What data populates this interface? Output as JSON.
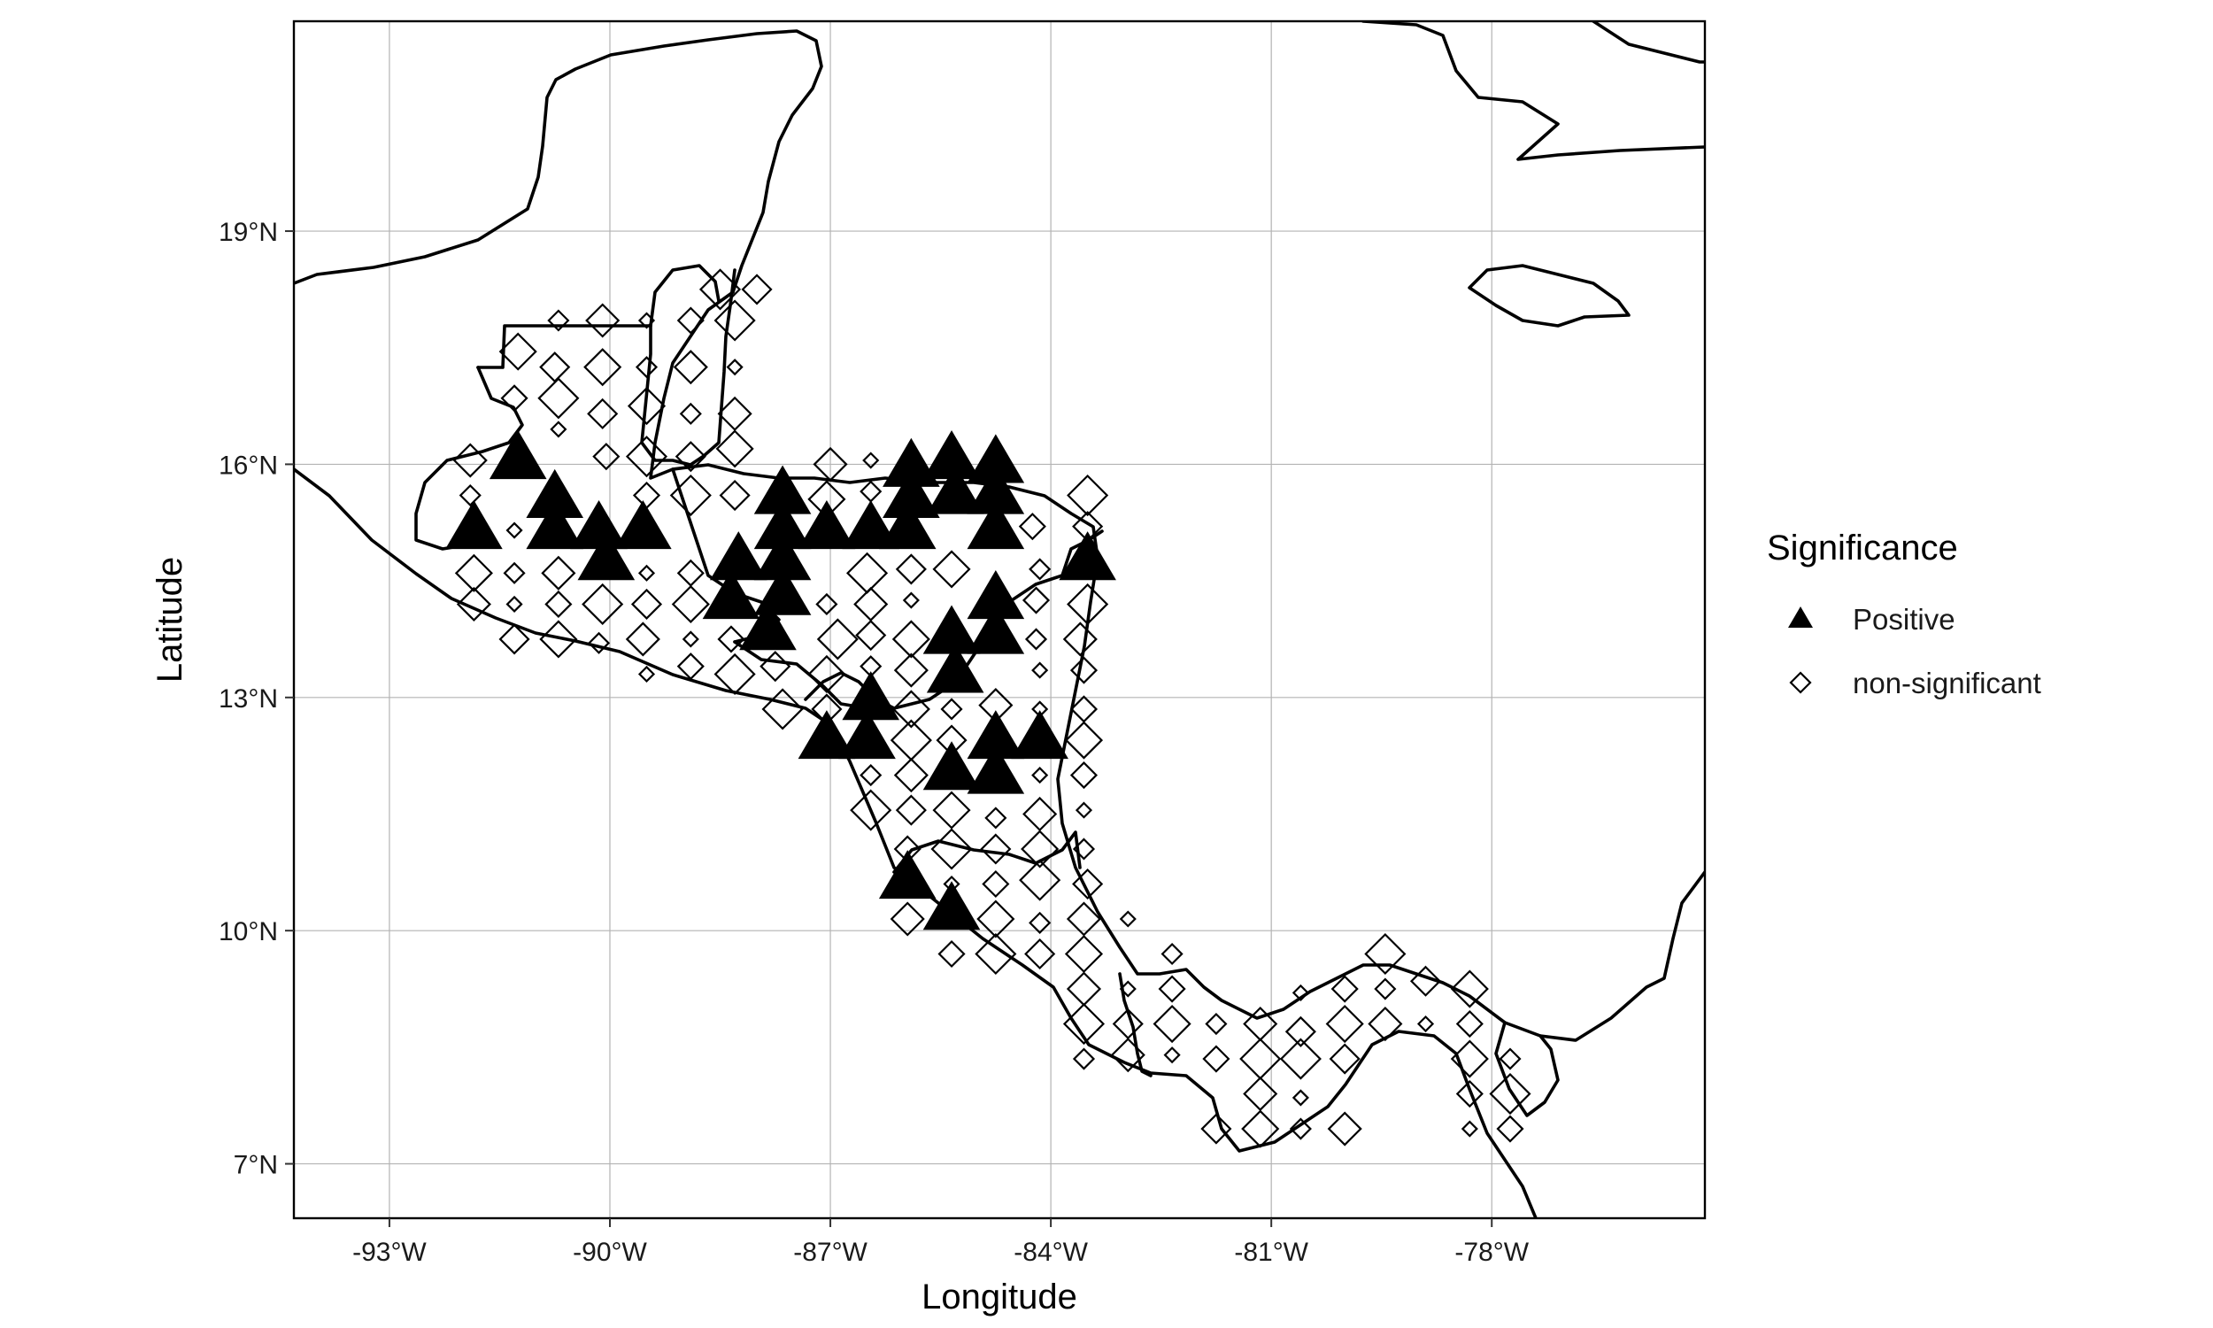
{
  "chart_data": {
    "type": "scatter",
    "title": "",
    "xlabel": "Longitude",
    "ylabel": "Latitude",
    "xlim": [
      -94.3,
      -75.1
    ],
    "ylim": [
      6.3,
      21.7
    ],
    "xticks": [
      -93,
      -90,
      -87,
      -84,
      -81,
      -78
    ],
    "xtick_labels": [
      "-93°W",
      "-90°W",
      "-87°W",
      "-84°W",
      "-81°W",
      "-78°W"
    ],
    "yticks": [
      7,
      10,
      13,
      16,
      19
    ],
    "ytick_labels": [
      "7°N",
      "10°N",
      "13°N",
      "16°N",
      "19°N"
    ],
    "grid": true,
    "legend": {
      "title": "Significance",
      "placement": "right",
      "entries": [
        {
          "label": "Positive",
          "shape": "triangle"
        },
        {
          "label": "non-significant",
          "shape": "diamond"
        }
      ]
    },
    "series": [
      {
        "name": "Positive",
        "shape": "triangle",
        "color": "#000000",
        "points": [
          [
            -91.25,
            16.05
          ],
          [
            -90.75,
            15.55
          ],
          [
            -91.85,
            15.15
          ],
          [
            -90.75,
            15.15
          ],
          [
            -90.15,
            15.15
          ],
          [
            -89.55,
            15.15
          ],
          [
            -90.05,
            14.75
          ],
          [
            -88.25,
            14.75
          ],
          [
            -88.35,
            14.25
          ],
          [
            -87.65,
            15.6
          ],
          [
            -87.65,
            15.15
          ],
          [
            -87.05,
            15.15
          ],
          [
            -86.45,
            15.15
          ],
          [
            -85.95,
            15.15
          ],
          [
            -85.9,
            15.95
          ],
          [
            -85.35,
            16.05
          ],
          [
            -84.75,
            16.0
          ],
          [
            -85.9,
            15.55
          ],
          [
            -85.3,
            15.6
          ],
          [
            -84.75,
            15.6
          ],
          [
            -84.75,
            15.15
          ],
          [
            -87.65,
            14.75
          ],
          [
            -87.65,
            14.3
          ],
          [
            -87.85,
            13.85
          ],
          [
            -83.5,
            14.75
          ],
          [
            -84.75,
            14.25
          ],
          [
            -85.35,
            13.8
          ],
          [
            -84.75,
            13.8
          ],
          [
            -85.3,
            13.3
          ],
          [
            -86.45,
            12.95
          ],
          [
            -87.05,
            12.45
          ],
          [
            -86.5,
            12.45
          ],
          [
            -84.75,
            12.45
          ],
          [
            -84.15,
            12.45
          ],
          [
            -85.35,
            12.05
          ],
          [
            -84.75,
            12.0
          ],
          [
            -85.95,
            10.65
          ],
          [
            -85.35,
            10.25
          ]
        ]
      },
      {
        "name": "non-significant",
        "shape": "diamond",
        "color": "#000000",
        "points": [
          [
            -88.5,
            18.25
          ],
          [
            -88.0,
            18.25
          ],
          [
            -91.25,
            17.45
          ],
          [
            -90.7,
            17.85
          ],
          [
            -90.1,
            17.85
          ],
          [
            -89.5,
            17.85
          ],
          [
            -88.9,
            17.85
          ],
          [
            -88.3,
            17.85
          ],
          [
            -90.75,
            17.25
          ],
          [
            -90.1,
            17.25
          ],
          [
            -89.5,
            17.25
          ],
          [
            -88.9,
            17.25
          ],
          [
            -88.3,
            17.25
          ],
          [
            -91.3,
            16.85
          ],
          [
            -90.7,
            16.85
          ],
          [
            -90.1,
            16.65
          ],
          [
            -89.5,
            16.75
          ],
          [
            -88.9,
            16.65
          ],
          [
            -88.3,
            16.65
          ],
          [
            -90.7,
            16.45
          ],
          [
            -90.05,
            16.1
          ],
          [
            -89.5,
            16.1
          ],
          [
            -88.9,
            16.1
          ],
          [
            -88.3,
            16.2
          ],
          [
            -91.9,
            15.6
          ],
          [
            -91.9,
            16.05
          ],
          [
            -91.3,
            15.15
          ],
          [
            -89.5,
            15.6
          ],
          [
            -88.9,
            15.6
          ],
          [
            -88.3,
            15.6
          ],
          [
            -87.05,
            15.55
          ],
          [
            -86.45,
            15.65
          ],
          [
            -87.0,
            16.0
          ],
          [
            -86.45,
            16.05
          ],
          [
            -84.25,
            15.2
          ],
          [
            -83.5,
            15.6
          ],
          [
            -83.5,
            15.2
          ],
          [
            -91.85,
            14.6
          ],
          [
            -91.3,
            14.6
          ],
          [
            -90.7,
            14.6
          ],
          [
            -89.5,
            14.6
          ],
          [
            -88.9,
            14.6
          ],
          [
            -86.5,
            14.6
          ],
          [
            -85.9,
            14.65
          ],
          [
            -85.35,
            14.65
          ],
          [
            -84.15,
            14.65
          ],
          [
            -91.85,
            14.2
          ],
          [
            -91.3,
            14.2
          ],
          [
            -90.7,
            14.2
          ],
          [
            -90.1,
            14.2
          ],
          [
            -89.5,
            14.2
          ],
          [
            -88.9,
            14.2
          ],
          [
            -87.05,
            14.2
          ],
          [
            -86.45,
            14.2
          ],
          [
            -85.9,
            14.25
          ],
          [
            -84.2,
            14.25
          ],
          [
            -83.5,
            14.2
          ],
          [
            -91.3,
            13.75
          ],
          [
            -90.7,
            13.75
          ],
          [
            -90.15,
            13.7
          ],
          [
            -89.55,
            13.75
          ],
          [
            -88.9,
            13.75
          ],
          [
            -88.35,
            13.75
          ],
          [
            -86.9,
            13.75
          ],
          [
            -86.45,
            13.8
          ],
          [
            -85.9,
            13.75
          ],
          [
            -84.2,
            13.75
          ],
          [
            -83.6,
            13.75
          ],
          [
            -89.5,
            13.3
          ],
          [
            -88.9,
            13.4
          ],
          [
            -88.3,
            13.3
          ],
          [
            -87.75,
            13.4
          ],
          [
            -87.05,
            13.3
          ],
          [
            -86.45,
            13.4
          ],
          [
            -85.9,
            13.35
          ],
          [
            -84.15,
            13.35
          ],
          [
            -83.55,
            13.35
          ],
          [
            -87.65,
            12.85
          ],
          [
            -87.05,
            12.85
          ],
          [
            -85.9,
            12.85
          ],
          [
            -85.35,
            12.85
          ],
          [
            -84.75,
            12.9
          ],
          [
            -84.15,
            12.85
          ],
          [
            -83.55,
            12.85
          ],
          [
            -85.9,
            12.45
          ],
          [
            -85.35,
            12.45
          ],
          [
            -83.55,
            12.45
          ],
          [
            -86.45,
            12.0
          ],
          [
            -85.9,
            12.0
          ],
          [
            -84.15,
            12.0
          ],
          [
            -83.55,
            12.0
          ],
          [
            -86.45,
            11.55
          ],
          [
            -85.9,
            11.55
          ],
          [
            -85.35,
            11.55
          ],
          [
            -84.75,
            11.45
          ],
          [
            -84.15,
            11.5
          ],
          [
            -83.55,
            11.55
          ],
          [
            -85.95,
            11.05
          ],
          [
            -85.35,
            11.05
          ],
          [
            -84.75,
            11.05
          ],
          [
            -84.15,
            11.05
          ],
          [
            -83.55,
            11.05
          ],
          [
            -85.95,
            10.15
          ],
          [
            -85.35,
            10.6
          ],
          [
            -84.75,
            10.6
          ],
          [
            -84.15,
            10.65
          ],
          [
            -83.5,
            10.6
          ],
          [
            -84.75,
            10.15
          ],
          [
            -84.15,
            10.1
          ],
          [
            -83.55,
            10.15
          ],
          [
            -82.95,
            10.15
          ],
          [
            -85.35,
            9.7
          ],
          [
            -84.75,
            9.7
          ],
          [
            -84.15,
            9.7
          ],
          [
            -83.55,
            9.7
          ],
          [
            -82.35,
            9.7
          ],
          [
            -83.55,
            9.25
          ],
          [
            -82.95,
            9.25
          ],
          [
            -82.35,
            9.25
          ],
          [
            -83.55,
            8.8
          ],
          [
            -82.95,
            8.8
          ],
          [
            -82.35,
            8.8
          ],
          [
            -81.75,
            8.8
          ],
          [
            -81.15,
            8.8
          ],
          [
            -80.6,
            9.2
          ],
          [
            -80.0,
            9.25
          ],
          [
            -79.45,
            9.7
          ],
          [
            -78.9,
            9.35
          ],
          [
            -78.3,
            9.25
          ],
          [
            -83.55,
            8.35
          ],
          [
            -82.95,
            8.4
          ],
          [
            -82.35,
            8.4
          ],
          [
            -81.75,
            8.35
          ],
          [
            -81.15,
            8.35
          ],
          [
            -80.6,
            8.7
          ],
          [
            -80.0,
            8.8
          ],
          [
            -79.45,
            9.25
          ],
          [
            -79.45,
            8.8
          ],
          [
            -78.9,
            8.8
          ],
          [
            -78.3,
            8.8
          ],
          [
            -80.6,
            8.35
          ],
          [
            -80.0,
            8.35
          ],
          [
            -78.3,
            8.35
          ],
          [
            -77.75,
            8.35
          ],
          [
            -81.15,
            7.9
          ],
          [
            -80.6,
            7.85
          ],
          [
            -78.3,
            7.9
          ],
          [
            -77.75,
            7.9
          ],
          [
            -81.75,
            7.45
          ],
          [
            -81.15,
            7.45
          ],
          [
            -80.6,
            7.45
          ],
          [
            -80.0,
            7.45
          ],
          [
            -78.3,
            7.45
          ],
          [
            -77.75,
            7.45
          ]
        ]
      }
    ]
  }
}
